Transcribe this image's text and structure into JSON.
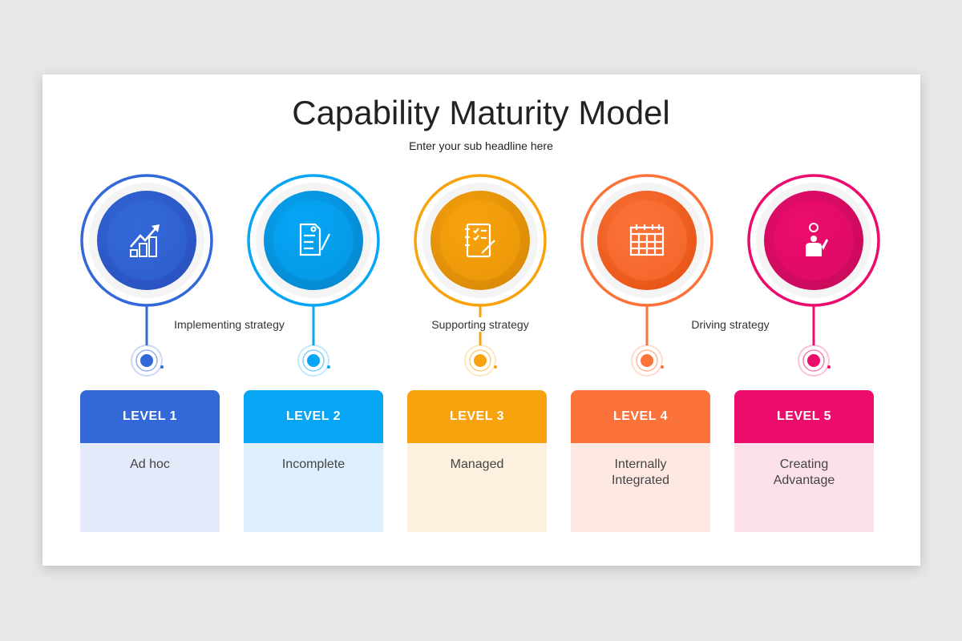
{
  "title": "Capability Maturity Model",
  "subtitle": "Enter your sub headline here",
  "strategies": [
    "Implementing strategy",
    "Supporting strategy",
    "Driving strategy"
  ],
  "levels": [
    {
      "label": "LEVEL 1",
      "text": "Ad hoc",
      "color": "#3368d8",
      "dark": "#2a52c0",
      "tint": "#e4eaf9",
      "icon": "growth-chart-coins-icon"
    },
    {
      "label": "LEVEL 2",
      "text": "Incomplete",
      "color": "#06a6f5",
      "dark": "#0588d0",
      "tint": "#ddeffc",
      "icon": "contract-signing-icon"
    },
    {
      "label": "LEVEL 3",
      "text": "Managed",
      "color": "#f8a20d",
      "dark": "#d98a06",
      "tint": "#fdf0de",
      "icon": "checklist-notebook-icon"
    },
    {
      "label": "LEVEL 4",
      "text": "Internally Integrated",
      "color": "#fb733a",
      "dark": "#e85515",
      "tint": "#fde9e1",
      "icon": "calendar-check-icon"
    },
    {
      "label": "LEVEL 5",
      "text": "Creating Advantage",
      "color": "#ec0c6c",
      "dark": "#c80a5c",
      "tint": "#fce1eb",
      "icon": "idea-person-icon"
    }
  ]
}
